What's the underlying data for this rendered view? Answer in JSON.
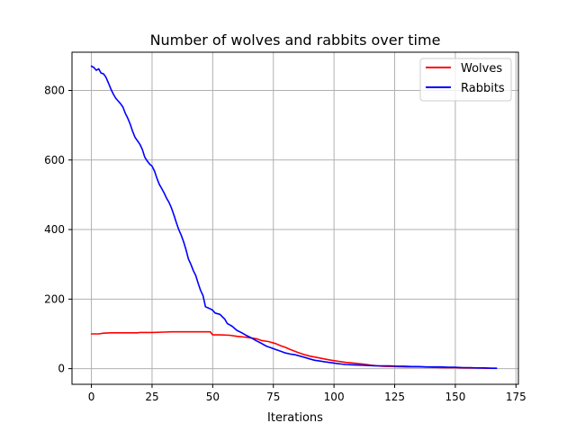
{
  "chart_data": {
    "type": "line",
    "title": "Number of wolves and rabbits over time",
    "xlabel": "Iterations",
    "ylabel": "",
    "xlim": [
      -8,
      176
    ],
    "ylim": [
      -45,
      910
    ],
    "xticks": [
      0,
      25,
      50,
      75,
      100,
      125,
      150,
      175
    ],
    "yticks": [
      0,
      200,
      400,
      600,
      800
    ],
    "grid": true,
    "legend_position": "top-right",
    "series": [
      {
        "name": "Wolves",
        "color": "#ff0000",
        "points": [
          [
            0,
            100
          ],
          [
            3,
            100
          ],
          [
            5,
            102
          ],
          [
            8,
            103
          ],
          [
            12,
            103
          ],
          [
            15,
            103
          ],
          [
            19,
            103
          ],
          [
            20,
            104
          ],
          [
            25,
            104
          ],
          [
            30,
            105
          ],
          [
            33,
            106
          ],
          [
            36,
            106
          ],
          [
            40,
            106
          ],
          [
            44,
            106
          ],
          [
            49,
            106
          ],
          [
            50,
            97
          ],
          [
            53,
            97
          ],
          [
            57,
            96
          ],
          [
            60,
            93
          ],
          [
            63,
            91
          ],
          [
            66,
            88
          ],
          [
            68,
            86
          ],
          [
            70,
            81
          ],
          [
            73,
            78
          ],
          [
            76,
            72
          ],
          [
            78,
            66
          ],
          [
            80,
            61
          ],
          [
            82,
            55
          ],
          [
            85,
            47
          ],
          [
            88,
            40
          ],
          [
            90,
            36
          ],
          [
            93,
            32
          ],
          [
            96,
            28
          ],
          [
            99,
            24
          ],
          [
            102,
            21
          ],
          [
            105,
            18
          ],
          [
            108,
            16
          ],
          [
            112,
            13
          ],
          [
            115,
            10
          ],
          [
            118,
            8
          ],
          [
            120,
            7
          ],
          [
            125,
            6
          ],
          [
            130,
            5
          ],
          [
            135,
            5
          ],
          [
            140,
            4
          ],
          [
            145,
            3
          ],
          [
            150,
            3
          ],
          [
            155,
            2
          ],
          [
            160,
            2
          ],
          [
            163,
            1
          ],
          [
            167,
            1
          ]
        ]
      },
      {
        "name": "Rabbits",
        "color": "#0000ff",
        "points": [
          [
            0,
            870
          ],
          [
            1,
            866
          ],
          [
            2,
            858
          ],
          [
            3,
            862
          ],
          [
            4,
            850
          ],
          [
            5,
            848
          ],
          [
            6,
            838
          ],
          [
            7,
            822
          ],
          [
            8,
            805
          ],
          [
            9,
            790
          ],
          [
            10,
            778
          ],
          [
            11,
            770
          ],
          [
            12,
            762
          ],
          [
            13,
            752
          ],
          [
            14,
            734
          ],
          [
            15,
            720
          ],
          [
            16,
            703
          ],
          [
            17,
            682
          ],
          [
            18,
            665
          ],
          [
            19,
            655
          ],
          [
            20,
            645
          ],
          [
            21,
            630
          ],
          [
            22,
            608
          ],
          [
            23,
            597
          ],
          [
            24,
            588
          ],
          [
            25,
            582
          ],
          [
            26,
            568
          ],
          [
            27,
            548
          ],
          [
            28,
            530
          ],
          [
            29,
            518
          ],
          [
            30,
            505
          ],
          [
            31,
            490
          ],
          [
            32,
            478
          ],
          [
            33,
            462
          ],
          [
            34,
            442
          ],
          [
            35,
            420
          ],
          [
            36,
            400
          ],
          [
            37,
            384
          ],
          [
            38,
            365
          ],
          [
            39,
            342
          ],
          [
            40,
            315
          ],
          [
            41,
            300
          ],
          [
            42,
            282
          ],
          [
            43,
            268
          ],
          [
            44,
            245
          ],
          [
            45,
            225
          ],
          [
            46,
            210
          ],
          [
            47,
            178
          ],
          [
            48,
            175
          ],
          [
            49,
            172
          ],
          [
            50,
            168
          ],
          [
            51,
            160
          ],
          [
            53,
            156
          ],
          [
            55,
            142
          ],
          [
            56,
            130
          ],
          [
            58,
            122
          ],
          [
            60,
            110
          ],
          [
            62,
            103
          ],
          [
            64,
            95
          ],
          [
            66,
            88
          ],
          [
            68,
            80
          ],
          [
            70,
            73
          ],
          [
            72,
            65
          ],
          [
            74,
            60
          ],
          [
            76,
            55
          ],
          [
            78,
            50
          ],
          [
            80,
            45
          ],
          [
            82,
            42
          ],
          [
            84,
            40
          ],
          [
            86,
            36
          ],
          [
            88,
            32
          ],
          [
            90,
            28
          ],
          [
            92,
            24
          ],
          [
            94,
            22
          ],
          [
            96,
            20
          ],
          [
            98,
            18
          ],
          [
            100,
            16
          ],
          [
            102,
            14
          ],
          [
            105,
            12
          ],
          [
            108,
            11
          ],
          [
            111,
            10
          ],
          [
            114,
            9
          ],
          [
            117,
            8
          ],
          [
            120,
            8
          ],
          [
            123,
            8
          ],
          [
            126,
            7
          ],
          [
            129,
            7
          ],
          [
            132,
            6
          ],
          [
            135,
            6
          ],
          [
            138,
            5
          ],
          [
            141,
            5
          ],
          [
            144,
            5
          ],
          [
            147,
            4
          ],
          [
            150,
            4
          ],
          [
            153,
            3
          ],
          [
            156,
            3
          ],
          [
            159,
            2
          ],
          [
            162,
            2
          ],
          [
            165,
            1
          ],
          [
            167,
            1
          ]
        ]
      }
    ]
  }
}
